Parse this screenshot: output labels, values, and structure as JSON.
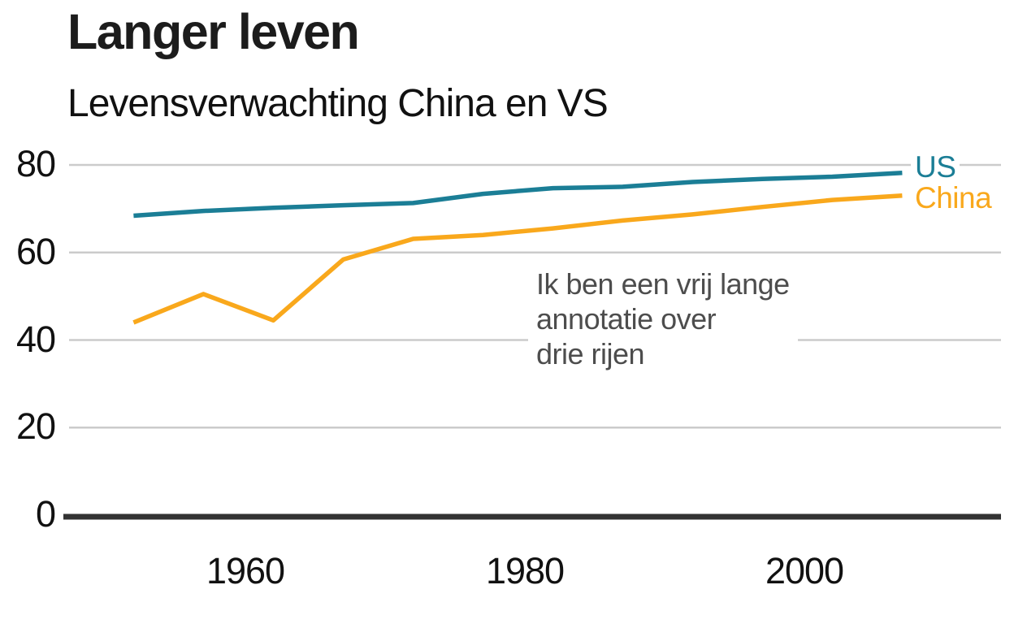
{
  "header": {
    "title": "Langer leven",
    "subtitle": "Levensverwachting China en VS"
  },
  "annotation": {
    "lines": [
      "Ik ben een vrij lange",
      "annotatie over",
      "drie rijen"
    ],
    "color": "#4d4d4d"
  },
  "chart_data": {
    "type": "line",
    "title": "Langer leven",
    "subtitle": "Levensverwachting China en VS",
    "xlabel": "",
    "ylabel": "",
    "x": [
      1952,
      1957,
      1962,
      1967,
      1972,
      1977,
      1982,
      1987,
      1992,
      1997,
      2002,
      2007
    ],
    "series": [
      {
        "name": "US",
        "color": "#1b7e96",
        "values": [
          68.4,
          69.5,
          70.2,
          70.8,
          71.3,
          73.4,
          74.7,
          75.0,
          76.1,
          76.8,
          77.3,
          78.2
        ]
      },
      {
        "name": "China",
        "color": "#f9a81c",
        "values": [
          44.0,
          50.5,
          44.5,
          58.4,
          63.1,
          64.0,
          65.5,
          67.3,
          68.7,
          70.4,
          72.0,
          73.0
        ]
      }
    ],
    "x_ticks": [
      1960,
      1980,
      2000
    ],
    "y_ticks": [
      0,
      20,
      40,
      60,
      80
    ],
    "xlim": [
      1948,
      2014
    ],
    "ylim": [
      0,
      85
    ],
    "grid": "horizontal-only",
    "legend": "direct-labels-at-line-ends",
    "annotation": "Ik ben een vrij lange annotatie over drie rijen",
    "colors": {
      "grid": "#cbcbcb",
      "axis": "#333333",
      "tick_label": "#111111",
      "annotation": "#4d4d4d"
    }
  }
}
